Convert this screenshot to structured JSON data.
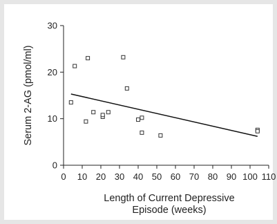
{
  "chart_data": {
    "type": "scatter",
    "xlabel": "Length of Current Depressive Episode (weeks)",
    "xlabel_lines": [
      "Length of Current Depressive",
      "Episode (weeks)"
    ],
    "ylabel": "Serum 2-AG (pmol/ml)",
    "xlim": [
      0,
      110
    ],
    "ylim": [
      0,
      30
    ],
    "x_ticks": [
      "0",
      "10",
      "20",
      "30",
      "40",
      "50",
      "60",
      "70",
      "80",
      "90",
      "100",
      "110"
    ],
    "y_ticks": [
      "0",
      "10",
      "20",
      "30"
    ],
    "grid": false,
    "points": [
      {
        "x": 4,
        "y": 13.5
      },
      {
        "x": 6,
        "y": 21.3
      },
      {
        "x": 12,
        "y": 9.4
      },
      {
        "x": 13,
        "y": 23.0
      },
      {
        "x": 16,
        "y": 11.4
      },
      {
        "x": 21,
        "y": 10.4
      },
      {
        "x": 21,
        "y": 10.8
      },
      {
        "x": 24,
        "y": 11.4
      },
      {
        "x": 32,
        "y": 23.2
      },
      {
        "x": 34,
        "y": 16.5
      },
      {
        "x": 40,
        "y": 9.8
      },
      {
        "x": 42,
        "y": 10.2
      },
      {
        "x": 42,
        "y": 7.0
      },
      {
        "x": 52,
        "y": 6.4
      },
      {
        "x": 104,
        "y": 7.6
      },
      {
        "x": 104,
        "y": 7.3
      }
    ],
    "regression_line": {
      "x": [
        4,
        104
      ],
      "y": [
        15.3,
        6.2
      ]
    },
    "colors": {
      "marker": "#333333",
      "line": "#111111",
      "axis": "#222222"
    }
  }
}
